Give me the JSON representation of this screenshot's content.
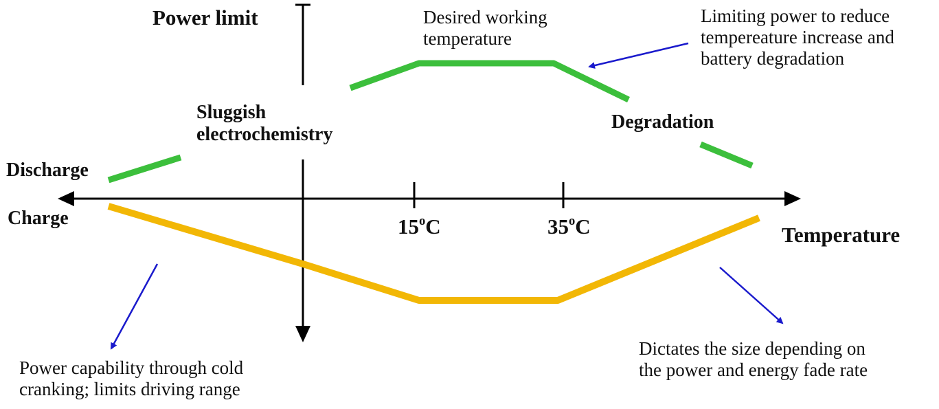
{
  "title": "Power limit",
  "axis_x_label": "Temperature",
  "labels": {
    "discharge": "Discharge",
    "charge": "Charge",
    "sluggish_line1": "Sluggish",
    "sluggish_line2": "electrochemistry",
    "degradation": "Degradation",
    "desired_line1": "Desired working",
    "desired_line2": "temperature",
    "limiting_line1": "Limiting power to reduce",
    "limiting_line2": "tempereature increase and",
    "limiting_line3": "battery degradation",
    "power_cap_line1": "Power capability through cold",
    "power_cap_line2": "cranking; limits driving range",
    "dictates_line1": "Dictates the size depending on",
    "dictates_line2": "the power and energy fade rate"
  },
  "ticks": [
    {
      "num": "15",
      "sup": "o",
      "unit": "C"
    },
    {
      "num": "35",
      "sup": "o",
      "unit": "C"
    }
  ],
  "colors": {
    "discharge_curve": "#3cbf3c",
    "charge_curve": "#f2b705",
    "annotation_arrow": "#1a1acc",
    "axis": "#000000"
  }
}
